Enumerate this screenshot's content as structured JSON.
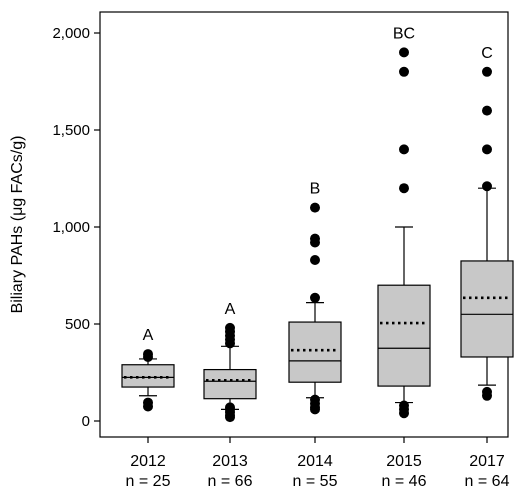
{
  "chart_data": {
    "type": "box",
    "ylabel": "Biliary PAHs (μg FACs/g)",
    "xlabel": "",
    "title": "",
    "ylim": [
      -60,
      2100
    ],
    "yticks": [
      0,
      500,
      1000,
      1500,
      2000
    ],
    "ytick_labels": [
      "0",
      "500",
      "1,000",
      "1,500",
      "2,000"
    ],
    "grid": false,
    "colors": {
      "box_fill": "#c8c8c8",
      "stroke": "#000000",
      "outlier": "#000000"
    },
    "categories": [
      "2012",
      "2013",
      "2014",
      "2015",
      "2017"
    ],
    "n_labels": [
      "n = 25",
      "n = 66",
      "n = 55",
      "n = 46",
      "n = 64"
    ],
    "significance_letters": [
      "A",
      "A",
      "B",
      "BC",
      "C"
    ],
    "boxes": [
      {
        "category": "2012",
        "whisker_low": 130,
        "q1": 175,
        "median": 225,
        "mean": 225,
        "q3": 290,
        "whisker_high": 320,
        "outliers": [
          75,
          95,
          330,
          345
        ]
      },
      {
        "category": "2013",
        "whisker_low": 60,
        "q1": 115,
        "median": 205,
        "mean": 210,
        "q3": 265,
        "whisker_high": 385,
        "outliers": [
          20,
          30,
          45,
          60,
          70,
          400,
          420,
          440,
          460,
          480
        ]
      },
      {
        "category": "2014",
        "whisker_low": 120,
        "q1": 200,
        "median": 310,
        "mean": 365,
        "q3": 510,
        "whisker_high": 610,
        "outliers": [
          60,
          70,
          90,
          110,
          635,
          830,
          920,
          940,
          1100
        ]
      },
      {
        "category": "2015",
        "whisker_low": 95,
        "q1": 180,
        "median": 375,
        "mean": 505,
        "q3": 700,
        "whisker_high": 1000,
        "outliers": [
          40,
          60,
          80,
          1200,
          1400,
          1800,
          1900
        ]
      },
      {
        "category": "2017",
        "whisker_low": 185,
        "q1": 330,
        "median": 550,
        "mean": 635,
        "q3": 825,
        "whisker_high": 1200,
        "outliers": [
          130,
          150,
          1210,
          1400,
          1600,
          1800
        ]
      }
    ]
  }
}
